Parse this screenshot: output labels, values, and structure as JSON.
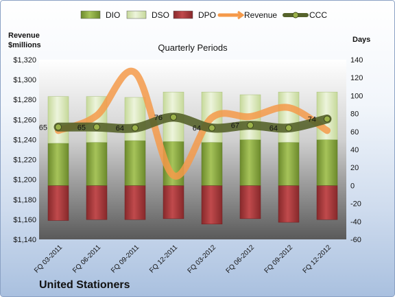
{
  "chart_data": {
    "type": "bar",
    "title": "Quarterly Periods",
    "company": "United Stationers",
    "left_axis_label": [
      "Revenue",
      "$millions"
    ],
    "right_axis_label": "Days",
    "categories": [
      "FQ 03-2011",
      "FQ 06-2011",
      "FQ 09-2011",
      "FQ 12-2011",
      "FQ 03-2012",
      "FQ 06-2012",
      "FQ 09-2012",
      "FQ 12-2012"
    ],
    "left_axis": {
      "min": 1140,
      "max": 1320,
      "step": 20,
      "ticks": [
        "$1,140",
        "$1,160",
        "$1,180",
        "$1,200",
        "$1,220",
        "$1,240",
        "$1,260",
        "$1,280",
        "$1,300",
        "$1,320"
      ]
    },
    "right_axis": {
      "min": -60,
      "max": 140,
      "step": 20,
      "ticks": [
        "-60",
        "-40",
        "-20",
        "0",
        "20",
        "40",
        "60",
        "80",
        "100",
        "120",
        "140"
      ]
    },
    "legend_position": "top",
    "series": [
      {
        "name": "DIO",
        "kind": "stacked-bar",
        "axis": "days",
        "color": "#7a9a35",
        "values": [
          47,
          48,
          50,
          49,
          48,
          51,
          48,
          51
        ]
      },
      {
        "name": "DSO",
        "kind": "stacked-bar",
        "axis": "days",
        "color": "#d8e7b8",
        "values": [
          52,
          51,
          48,
          55,
          56,
          50,
          56,
          53
        ]
      },
      {
        "name": "DPO",
        "kind": "bar-negative",
        "axis": "days",
        "color": "#9c3537",
        "values": [
          -39,
          -38,
          -38,
          -37,
          -43,
          -37,
          -41,
          -38
        ]
      },
      {
        "name": "Revenue",
        "kind": "line",
        "axis": "revenue",
        "color": "#f59a4a",
        "values": [
          1249,
          1264,
          1307,
          1204,
          1262,
          1263,
          1272,
          1249
        ]
      },
      {
        "name": "CCC",
        "kind": "line",
        "axis": "days",
        "color": "#56632b",
        "values": [
          65,
          65,
          64,
          76,
          64,
          67,
          64,
          74
        ]
      }
    ],
    "ccc_labels": [
      "65",
      "65",
      "64",
      "76",
      "64",
      "67",
      "64",
      "74"
    ],
    "grid": false
  }
}
